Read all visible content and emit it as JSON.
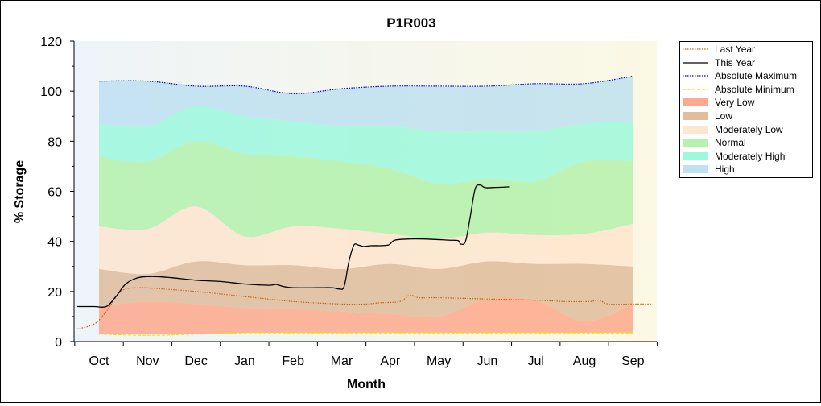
{
  "chart_data": {
    "type": "area",
    "title": "P1R003",
    "xlabel": "Month",
    "ylabel": "% Storage",
    "ylim": [
      0,
      120
    ],
    "yticks": [
      0,
      20,
      40,
      60,
      80,
      100,
      120
    ],
    "categories": [
      "Oct",
      "Nov",
      "Dec",
      "Jan",
      "Feb",
      "Mar",
      "Apr",
      "May",
      "Jun",
      "Jul",
      "Aug",
      "Sep"
    ],
    "grid": false,
    "legend_position": "right",
    "band_x": [
      0,
      1,
      2,
      3,
      4,
      5,
      6,
      7,
      8,
      9,
      10,
      11
    ],
    "bands": [
      {
        "name": "Very Low",
        "color": "#ff9a7a",
        "lower": [
          3,
          3,
          3,
          3.5,
          3.5,
          3.5,
          3.5,
          3.5,
          3.5,
          3.5,
          3.5,
          3.5
        ],
        "upper": [
          14,
          16,
          15,
          13.5,
          13,
          12,
          11,
          10,
          17,
          16.5,
          8,
          15
        ]
      },
      {
        "name": "Low",
        "color": "#dbb28c",
        "lower": [
          14,
          16,
          15,
          13.5,
          13,
          12,
          11,
          10,
          17,
          16.5,
          8,
          15
        ],
        "upper": [
          29,
          27,
          32,
          30.5,
          30.5,
          29,
          31,
          29,
          32,
          31,
          31,
          30
        ]
      },
      {
        "name": "Moderately Low",
        "color": "#ffe2c8",
        "lower": [
          29,
          27,
          32,
          30.5,
          30.5,
          29,
          31,
          29,
          32,
          31,
          31,
          30
        ],
        "upper": [
          46,
          45,
          54,
          42,
          46,
          45,
          43,
          41,
          43.5,
          42.5,
          43,
          47
        ]
      },
      {
        "name": "Normal",
        "color": "#a8f0a0",
        "lower": [
          46,
          45,
          54,
          42,
          46,
          45,
          43,
          41,
          43.5,
          42.5,
          43,
          47
        ],
        "upper": [
          74,
          72,
          80,
          75,
          74,
          72,
          69,
          63,
          65,
          64,
          72,
          72
        ]
      },
      {
        "name": "Moderately High",
        "color": "#8cf8d8",
        "lower": [
          74,
          72,
          80,
          75,
          74,
          72,
          69,
          63,
          65,
          64,
          72,
          72
        ],
        "upper": [
          87,
          86,
          94,
          90,
          88,
          86,
          86,
          84,
          84,
          84,
          87,
          88
        ]
      },
      {
        "name": "High",
        "color": "#b4dcf0",
        "lower": [
          87,
          86,
          94,
          90,
          88,
          86,
          86,
          84,
          84,
          84,
          87,
          88
        ],
        "upper": [
          104,
          104,
          102,
          102,
          99,
          101,
          102,
          102,
          102,
          103,
          103,
          106
        ]
      }
    ],
    "series": [
      {
        "name": "Last Year",
        "color": "#c86414",
        "style": "dotted",
        "points": [
          [
            -0.45,
            5
          ],
          [
            -0.1,
            7
          ],
          [
            0.15,
            12
          ],
          [
            0.45,
            20
          ],
          [
            0.8,
            21.5
          ],
          [
            1.3,
            21
          ],
          [
            2.0,
            20
          ],
          [
            3.0,
            18
          ],
          [
            4.0,
            16
          ],
          [
            5.0,
            15
          ],
          [
            5.5,
            15
          ],
          [
            5.8,
            15.5
          ],
          [
            6.2,
            16
          ],
          [
            6.4,
            18.5
          ],
          [
            6.6,
            17.5
          ],
          [
            7.0,
            17.5
          ],
          [
            8.0,
            17
          ],
          [
            9.0,
            16.5
          ],
          [
            9.6,
            16
          ],
          [
            10.1,
            16
          ],
          [
            10.3,
            16.5
          ],
          [
            10.5,
            15
          ],
          [
            11.0,
            15
          ],
          [
            11.4,
            15
          ]
        ]
      },
      {
        "name": "This Year",
        "color": "#000000",
        "style": "solid",
        "points": [
          [
            -0.45,
            14
          ],
          [
            -0.1,
            14
          ],
          [
            0.15,
            14
          ],
          [
            0.35,
            18
          ],
          [
            0.55,
            23
          ],
          [
            0.8,
            25.5
          ],
          [
            1.1,
            26
          ],
          [
            1.5,
            25.5
          ],
          [
            2.0,
            24.5
          ],
          [
            2.5,
            24
          ],
          [
            3.0,
            23
          ],
          [
            3.5,
            22.5
          ],
          [
            3.65,
            22.8
          ],
          [
            3.8,
            22
          ],
          [
            4.0,
            21.5
          ],
          [
            4.5,
            21.5
          ],
          [
            4.8,
            21.5
          ],
          [
            4.95,
            21
          ],
          [
            5.05,
            22
          ],
          [
            5.15,
            32
          ],
          [
            5.25,
            38.5
          ],
          [
            5.35,
            38.5
          ],
          [
            5.45,
            38
          ],
          [
            5.6,
            38.3
          ],
          [
            5.95,
            38.5
          ],
          [
            6.1,
            40.5
          ],
          [
            6.5,
            41
          ],
          [
            6.9,
            40.8
          ],
          [
            7.2,
            40.5
          ],
          [
            7.4,
            40.3
          ],
          [
            7.45,
            39
          ],
          [
            7.55,
            40
          ],
          [
            7.65,
            50
          ],
          [
            7.75,
            61
          ],
          [
            7.85,
            62.5
          ],
          [
            7.95,
            61.5
          ],
          [
            8.1,
            61.5
          ],
          [
            8.45,
            61.8
          ]
        ]
      },
      {
        "name": "Absolute Maximum",
        "color": "#0000d0",
        "style": "dotted",
        "points": [
          [
            0,
            104
          ],
          [
            1,
            104
          ],
          [
            2,
            102
          ],
          [
            3,
            102
          ],
          [
            4,
            99
          ],
          [
            5,
            101
          ],
          [
            6,
            102
          ],
          [
            7,
            102
          ],
          [
            8,
            102
          ],
          [
            9,
            103
          ],
          [
            10,
            103
          ],
          [
            11,
            106
          ]
        ]
      },
      {
        "name": "Absolute Minimum",
        "color": "#e6e600",
        "style": "dashed",
        "points": [
          [
            0,
            3
          ],
          [
            1,
            2.5
          ],
          [
            2,
            3
          ],
          [
            3,
            3.5
          ],
          [
            4,
            3.5
          ],
          [
            5,
            3.5
          ],
          [
            6,
            3.5
          ],
          [
            7,
            3.5
          ],
          [
            8,
            3.5
          ],
          [
            9,
            3.5
          ],
          [
            10,
            3.5
          ],
          [
            11,
            3.5
          ]
        ]
      }
    ],
    "legend": [
      "Last Year",
      "This Year",
      "Absolute Maximum",
      "Absolute Minimum",
      "Very Low",
      "Low",
      "Moderately Low",
      "Normal",
      "Moderately High",
      "High"
    ]
  }
}
